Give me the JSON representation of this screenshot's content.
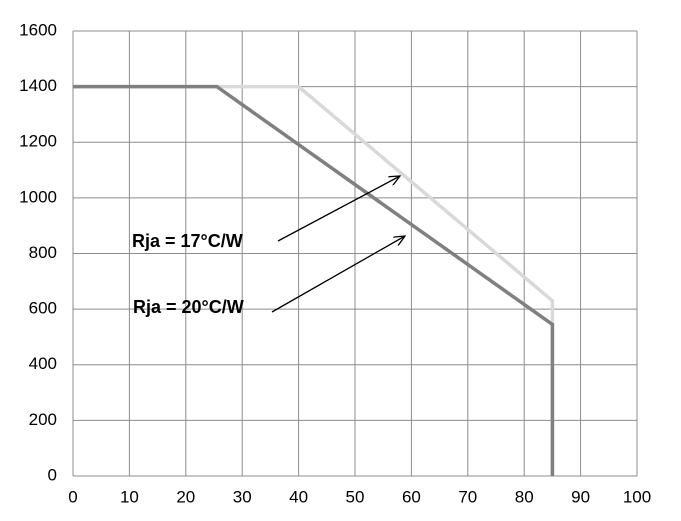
{
  "chart_data": {
    "type": "line",
    "series": [
      {
        "name": "Rja = 17°C/W",
        "color": "#d9d9d9",
        "x": [
          0,
          40,
          85,
          85
        ],
        "values": [
          1400,
          1400,
          630,
          0
        ]
      },
      {
        "name": "Rja = 20°C/W",
        "color": "#808080",
        "x": [
          0,
          25.5,
          85,
          85
        ],
        "values": [
          1400,
          1400,
          545,
          0
        ]
      }
    ],
    "xlim": [
      0,
      100
    ],
    "xticks": [
      0,
      10,
      20,
      30,
      40,
      50,
      60,
      70,
      80,
      90,
      100
    ],
    "ylim": [
      0,
      1600
    ],
    "yticks": [
      0,
      200,
      400,
      600,
      800,
      1000,
      1200,
      1400,
      1600
    ],
    "grid": true
  }
}
